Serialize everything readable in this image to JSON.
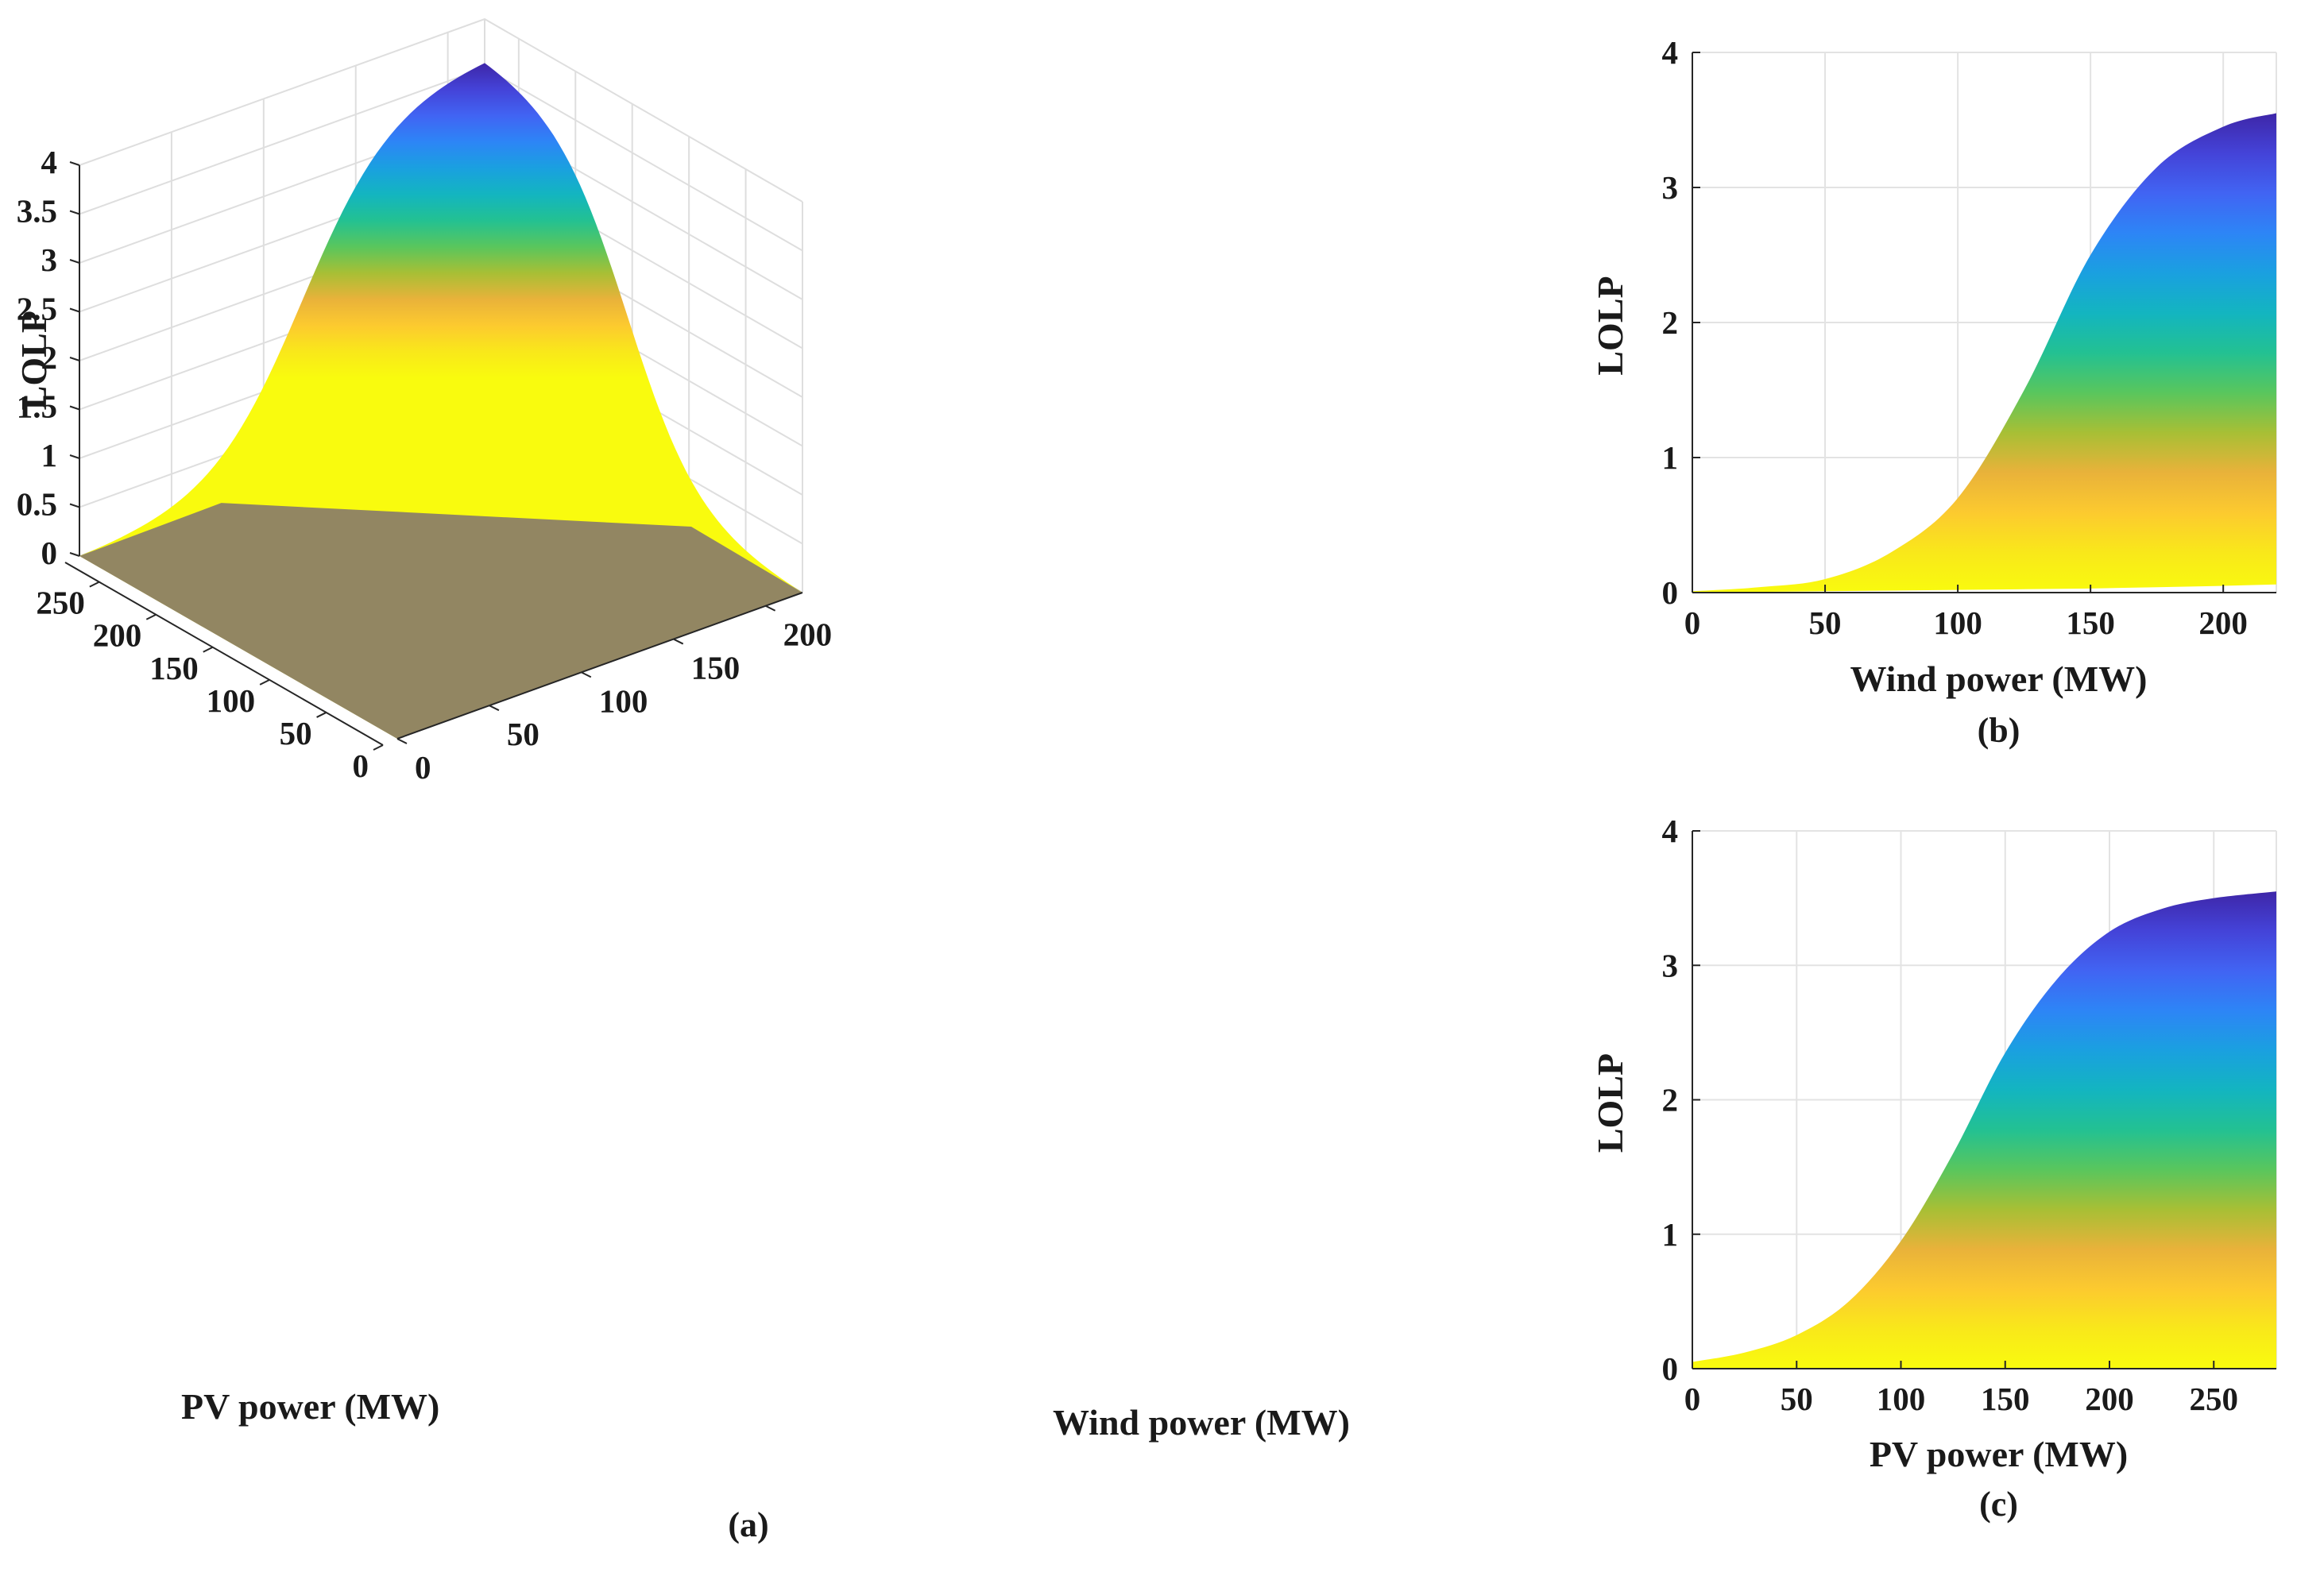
{
  "figure_labels": {
    "a": "(a)",
    "b": "(b)",
    "c": "(c)"
  },
  "colormap": [
    "#3e26a8",
    "#4443d8",
    "#4164f3",
    "#2d85f6",
    "#1aa0e0",
    "#13b5c0",
    "#23c192",
    "#59c65d",
    "#a8bf35",
    "#e9b23a",
    "#fcca2f",
    "#f9e81a",
    "#f9fb0e"
  ],
  "chart_data": [
    {
      "id": "a",
      "type": "surface",
      "title": "",
      "xlabel": "Wind power (MW)",
      "ylabel": "PV power (MW)",
      "zlabel": "LOLP",
      "xlim": [
        0,
        220
      ],
      "ylim": [
        0,
        280
      ],
      "zlim": [
        0,
        4
      ],
      "x_ticks": [
        0,
        50,
        100,
        150,
        200
      ],
      "y_ticks": [
        0,
        50,
        100,
        150,
        200,
        250
      ],
      "z_ticks": [
        "0",
        "0.5",
        "1",
        "1.5",
        "2",
        "2.5",
        "3",
        "3.5",
        "4"
      ],
      "peak": {
        "x": 220,
        "y": 280,
        "z": 3.55
      },
      "grid": true
    },
    {
      "id": "b",
      "type": "area",
      "title": "",
      "xlabel": "Wind power (MW)",
      "ylabel": "LOLP",
      "xlim": [
        0,
        220
      ],
      "ylim": [
        0,
        4
      ],
      "x_ticks": [
        0,
        50,
        100,
        150,
        200
      ],
      "y_ticks": [
        0,
        1,
        2,
        3,
        4
      ],
      "x": [
        0,
        25,
        50,
        75,
        100,
        125,
        150,
        175,
        200,
        220
      ],
      "upper": [
        0.01,
        0.04,
        0.1,
        0.3,
        0.7,
        1.5,
        2.5,
        3.15,
        3.45,
        3.55
      ],
      "lower": [
        0.0,
        0.005,
        0.01,
        0.015,
        0.02,
        0.025,
        0.03,
        0.04,
        0.05,
        0.06
      ],
      "grid": true
    },
    {
      "id": "c",
      "type": "area",
      "title": "",
      "xlabel": "PV power (MW)",
      "ylabel": "LOLP",
      "xlim": [
        0,
        280
      ],
      "ylim": [
        0,
        4
      ],
      "x_ticks": [
        0,
        50,
        100,
        150,
        200,
        250
      ],
      "y_ticks": [
        0,
        1,
        2,
        3,
        4
      ],
      "x": [
        0,
        25,
        50,
        75,
        100,
        125,
        150,
        175,
        200,
        225,
        250,
        280
      ],
      "upper": [
        0.05,
        0.12,
        0.25,
        0.5,
        0.95,
        1.6,
        2.35,
        2.9,
        3.25,
        3.42,
        3.5,
        3.55
      ],
      "lower": [
        0.0,
        0.0,
        0.0,
        0.0,
        0.0,
        0.0,
        0.0,
        0.0,
        0.0,
        0.0,
        0.0,
        0.0
      ],
      "grid": true
    }
  ]
}
